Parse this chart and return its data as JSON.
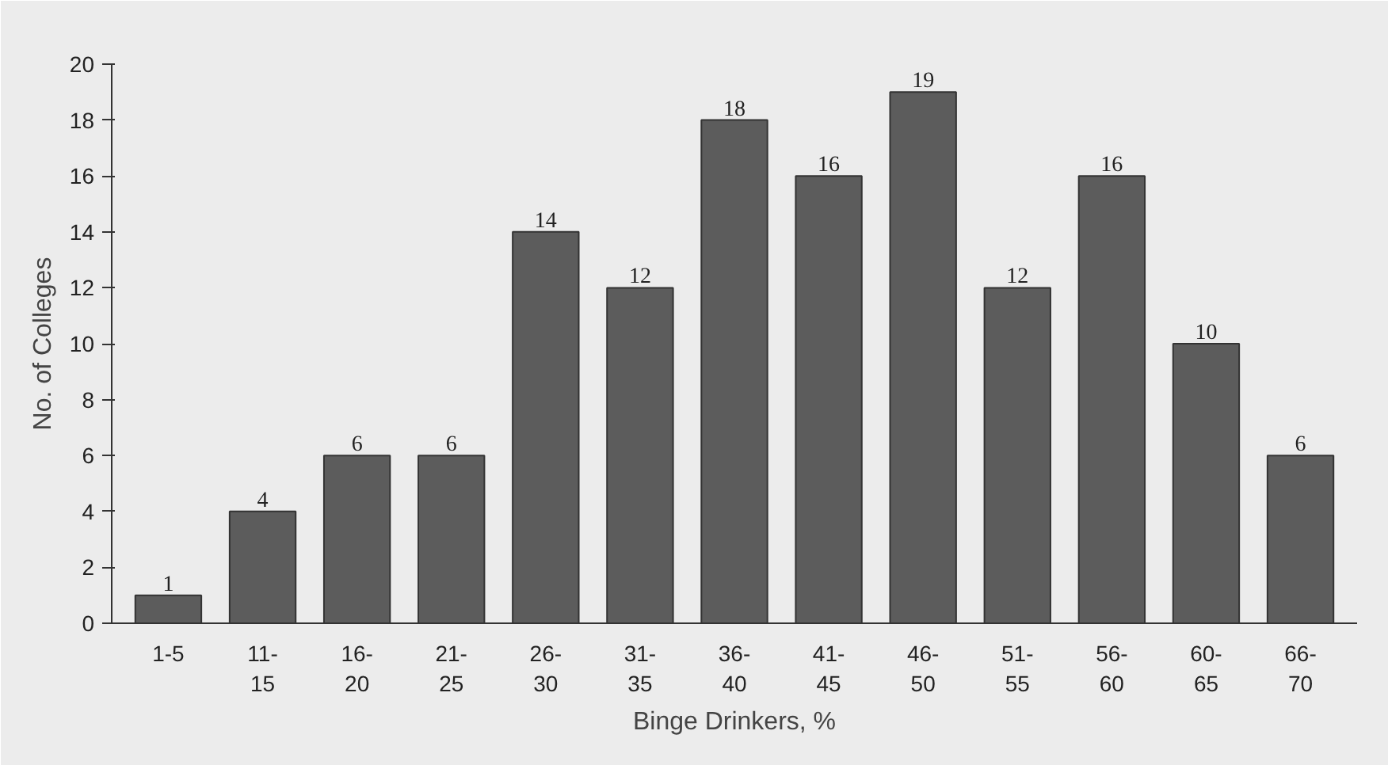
{
  "chart_data": {
    "type": "bar",
    "xlabel": "Binge Drinkers, %",
    "ylabel": "No. of Colleges",
    "categories": [
      "1-5",
      "11-\n15",
      "16-\n20",
      "21-\n25",
      "26-\n30",
      "31-\n35",
      "36-\n40",
      "41-\n45",
      "46-\n50",
      "51-\n55",
      "56-\n60",
      "60-\n65",
      "66-\n70"
    ],
    "values": [
      1,
      4,
      6,
      6,
      14,
      12,
      18,
      16,
      19,
      12,
      16,
      10,
      6
    ],
    "color": "#5c5c5c",
    "ylim": [
      0,
      20
    ],
    "yticks": [
      0,
      2,
      4,
      6,
      8,
      10,
      12,
      14,
      16,
      18,
      20
    ],
    "data_labels": true,
    "grid": false
  }
}
